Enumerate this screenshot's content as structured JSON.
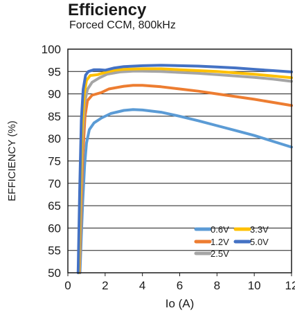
{
  "chart_data": {
    "type": "line",
    "title": "Efficiency",
    "subtitle": "Forced CCM, 800kHz",
    "xlabel": "Io (A)",
    "ylabel": "EFFICIENCY (%)",
    "xlim": [
      0,
      12
    ],
    "ylim": [
      50,
      100
    ],
    "xticks": [
      0,
      2,
      4,
      6,
      8,
      10,
      12
    ],
    "yticks": [
      50,
      55,
      60,
      65,
      70,
      75,
      80,
      85,
      90,
      95,
      100
    ],
    "grid": "horizontal",
    "legend_position": "bottom-right",
    "legend_layout": [
      [
        "0.6V",
        "3.3V"
      ],
      [
        "1.2V",
        "5.0V"
      ],
      [
        "2.5V"
      ]
    ],
    "series": [
      {
        "name": "0.6V",
        "color": "#5b9bd5",
        "points": [
          [
            0.65,
            50
          ],
          [
            0.72,
            58
          ],
          [
            0.8,
            66
          ],
          [
            0.9,
            74
          ],
          [
            1.0,
            79
          ],
          [
            1.15,
            82
          ],
          [
            1.4,
            83.5
          ],
          [
            1.8,
            84.6
          ],
          [
            2.3,
            85.6
          ],
          [
            3.0,
            86.3
          ],
          [
            3.5,
            86.5
          ],
          [
            4.0,
            86.4
          ],
          [
            5.0,
            85.9
          ],
          [
            6.0,
            85.0
          ],
          [
            7.0,
            84.0
          ],
          [
            8.0,
            82.9
          ],
          [
            9.0,
            81.8
          ],
          [
            10.0,
            80.7
          ],
          [
            11.0,
            79.4
          ],
          [
            12.0,
            78.1
          ]
        ]
      },
      {
        "name": "1.2V",
        "color": "#ed7d31",
        "points": [
          [
            0.62,
            50
          ],
          [
            0.7,
            62
          ],
          [
            0.8,
            76
          ],
          [
            0.92,
            85
          ],
          [
            1.05,
            88.5
          ],
          [
            1.3,
            89.7
          ],
          [
            1.8,
            90.3
          ],
          [
            2.2,
            91.1
          ],
          [
            3.0,
            91.7
          ],
          [
            3.5,
            91.9
          ],
          [
            4.0,
            91.9
          ],
          [
            5.0,
            91.6
          ],
          [
            6.0,
            91.1
          ],
          [
            7.0,
            90.6
          ],
          [
            8.0,
            90.0
          ],
          [
            9.0,
            89.4
          ],
          [
            10.0,
            88.8
          ],
          [
            11.0,
            88.1
          ],
          [
            12.0,
            87.4
          ]
        ]
      },
      {
        "name": "2.5V",
        "color": "#a5a5a5",
        "points": [
          [
            0.6,
            50
          ],
          [
            0.68,
            64
          ],
          [
            0.78,
            80
          ],
          [
            0.9,
            88
          ],
          [
            1.05,
            91
          ],
          [
            1.3,
            92.6
          ],
          [
            1.7,
            93.6
          ],
          [
            2.1,
            94.4
          ],
          [
            2.8,
            94.9
          ],
          [
            3.5,
            95.1
          ],
          [
            4.0,
            95.1
          ],
          [
            5.0,
            95.0
          ],
          [
            6.0,
            94.8
          ],
          [
            7.0,
            94.6
          ],
          [
            8.0,
            94.3
          ],
          [
            9.0,
            94.0
          ],
          [
            10.0,
            93.7
          ],
          [
            11.0,
            93.3
          ],
          [
            12.0,
            92.8
          ]
        ]
      },
      {
        "name": "3.3V",
        "color": "#ffc000",
        "points": [
          [
            0.58,
            50
          ],
          [
            0.66,
            66
          ],
          [
            0.76,
            82
          ],
          [
            0.88,
            90
          ],
          [
            1.0,
            93
          ],
          [
            1.2,
            94.1
          ],
          [
            1.6,
            94.3
          ],
          [
            2.0,
            94.8
          ],
          [
            2.5,
            95.3
          ],
          [
            3.0,
            95.5
          ],
          [
            4.0,
            95.6
          ],
          [
            5.0,
            95.6
          ],
          [
            6.0,
            95.4
          ],
          [
            7.0,
            95.2
          ],
          [
            8.0,
            95.0
          ],
          [
            9.0,
            94.7
          ],
          [
            10.0,
            94.4
          ],
          [
            11.0,
            94.0
          ],
          [
            12.0,
            93.6
          ]
        ]
      },
      {
        "name": "5.0V",
        "color": "#4472c4",
        "points": [
          [
            0.55,
            50
          ],
          [
            0.63,
            68
          ],
          [
            0.72,
            84
          ],
          [
            0.82,
            91
          ],
          [
            0.95,
            94.2
          ],
          [
            1.1,
            95.0
          ],
          [
            1.4,
            95.4
          ],
          [
            1.7,
            95.4
          ],
          [
            2.0,
            95.3
          ],
          [
            2.5,
            95.8
          ],
          [
            3.0,
            96.1
          ],
          [
            4.0,
            96.3
          ],
          [
            5.0,
            96.4
          ],
          [
            6.0,
            96.3
          ],
          [
            7.0,
            96.2
          ],
          [
            8.0,
            96.0
          ],
          [
            9.0,
            95.8
          ],
          [
            10.0,
            95.5
          ],
          [
            11.0,
            95.2
          ],
          [
            12.0,
            94.9
          ]
        ]
      }
    ]
  }
}
